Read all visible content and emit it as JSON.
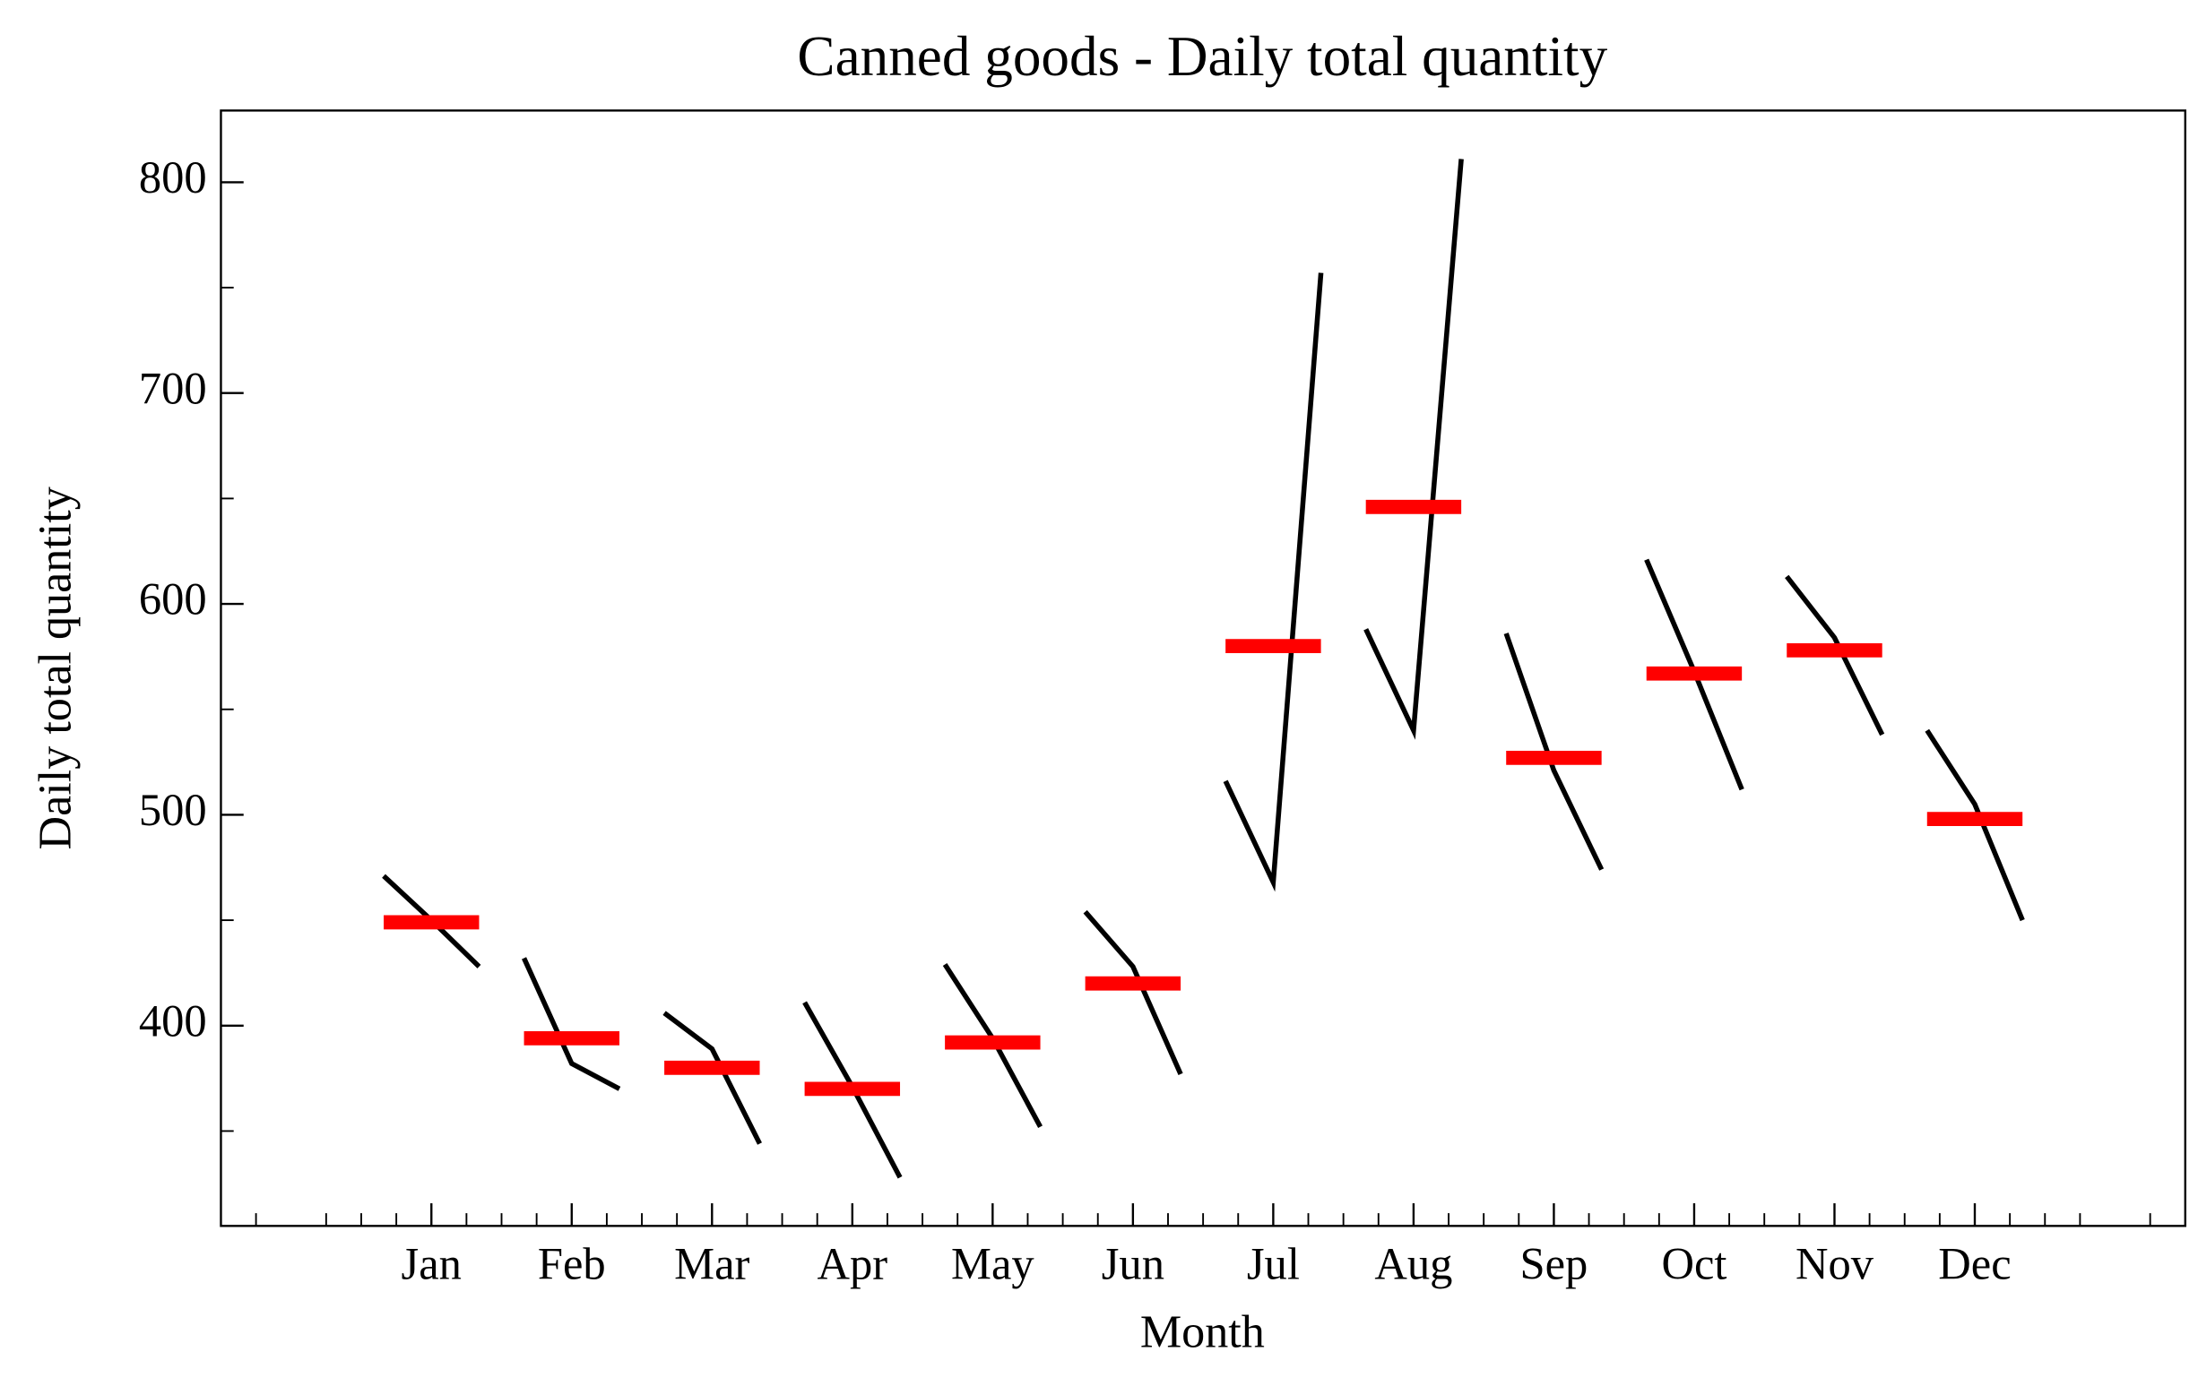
{
  "chart_data": {
    "type": "monthplot",
    "title": "Canned goods - Daily total quantity",
    "x_label": "Month",
    "y_label": "Daily total quantity",
    "categories": [
      "Jan",
      "Feb",
      "Mar",
      "Apr",
      "May",
      "Jun",
      "Jul",
      "Aug",
      "Sep",
      "Oct",
      "Nov",
      "Dec"
    ],
    "values": [
      [
        471,
        450,
        428
      ],
      [
        432,
        382,
        370
      ],
      [
        406,
        389,
        344
      ],
      [
        411,
        371,
        328
      ],
      [
        429,
        394,
        352
      ],
      [
        454,
        428,
        377
      ],
      [
        516,
        468,
        757
      ],
      [
        588,
        540,
        811
      ],
      [
        586,
        521,
        474
      ],
      [
        621,
        568,
        512
      ],
      [
        613,
        584,
        538
      ],
      [
        540,
        505,
        450
      ]
    ],
    "means": [
      449,
      394,
      380,
      370,
      392,
      420,
      580,
      646,
      527,
      567,
      578,
      498
    ],
    "line_color": "#000000",
    "mean_color": "#ff0000",
    "ylim": [
      305,
      834
    ],
    "yticks": [
      400,
      500,
      600,
      700,
      800
    ],
    "yminorticks": [
      350,
      450,
      550,
      650,
      750
    ]
  }
}
